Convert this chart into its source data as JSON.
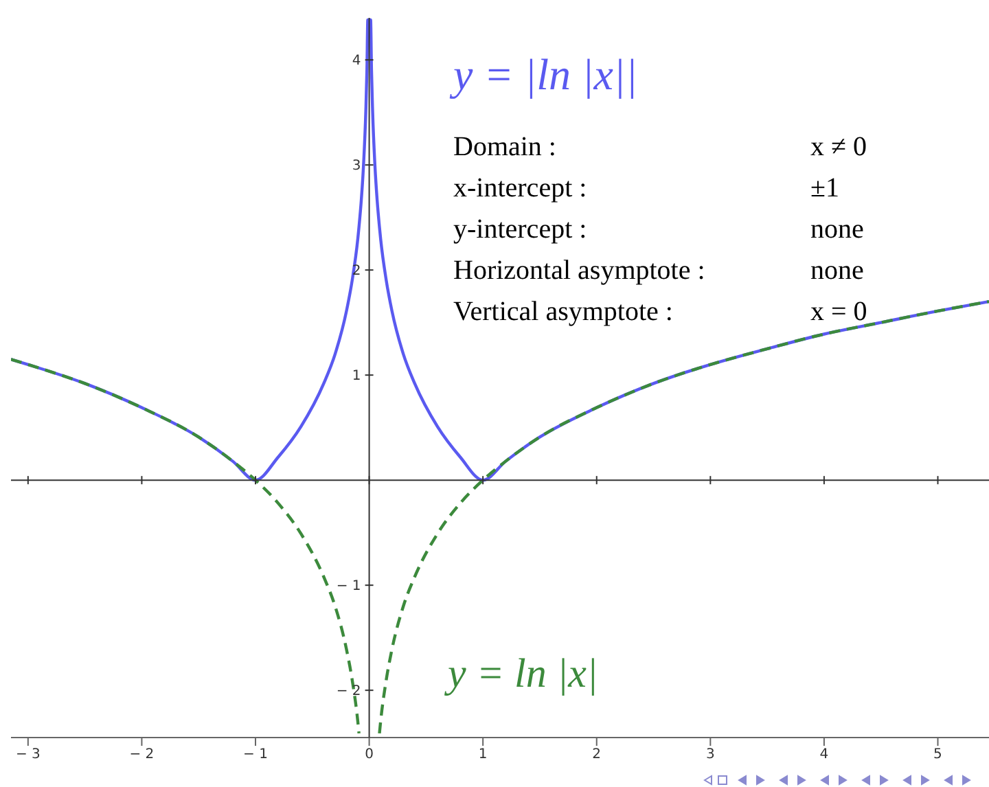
{
  "chart_data": {
    "type": "line",
    "x": [
      -3.15,
      -3,
      -2.5,
      -2,
      -1.5,
      -1.2,
      -1,
      -0.8,
      -0.6,
      -0.4,
      -0.3,
      -0.2,
      -0.15,
      -0.1,
      -0.09,
      -0.07,
      -0.05,
      -0.03,
      -0.02,
      -0.0125,
      0.0125,
      0.02,
      0.03,
      0.05,
      0.07,
      0.09,
      0.1,
      0.15,
      0.2,
      0.3,
      0.4,
      0.6,
      0.8,
      1,
      1.2,
      1.5,
      2,
      2.5,
      3,
      3.5,
      4,
      4.5,
      5,
      5.45
    ],
    "series": [
      {
        "name": "y = |ln |x||",
        "color": "#5a5af0",
        "line_style": "solid",
        "values": [
          1.15,
          1.1,
          0.92,
          0.69,
          0.41,
          0.18,
          0,
          0.22,
          0.51,
          0.92,
          1.2,
          1.61,
          1.9,
          2.3,
          2.41,
          2.66,
          3,
          3.51,
          3.91,
          4.38,
          4.38,
          3.91,
          3.51,
          3,
          2.66,
          2.41,
          2.3,
          1.9,
          1.61,
          1.2,
          0.92,
          0.51,
          0.22,
          0,
          0.18,
          0.41,
          0.69,
          0.92,
          1.1,
          1.25,
          1.39,
          1.5,
          1.61,
          1.7
        ]
      },
      {
        "name": "y = ln |x|",
        "color": "#3c8a3c",
        "line_style": "dashed",
        "values": [
          1.15,
          1.1,
          0.92,
          0.69,
          0.41,
          0.18,
          0,
          -0.22,
          -0.51,
          -0.92,
          -1.2,
          -1.61,
          -1.9,
          -2.3,
          -2.41,
          null,
          null,
          null,
          null,
          null,
          null,
          null,
          null,
          null,
          null,
          -2.41,
          -2.3,
          -1.9,
          -1.61,
          -1.2,
          -0.92,
          -0.51,
          -0.22,
          0,
          0.18,
          0.41,
          0.69,
          0.92,
          1.1,
          1.25,
          1.39,
          1.5,
          1.61,
          1.7
        ]
      }
    ],
    "xlim": [
      -3.15,
      5.45
    ],
    "xticks": [
      -3,
      -2,
      -1,
      0,
      1,
      2,
      3,
      4,
      5
    ],
    "ylim": [
      -2.45,
      4.4
    ],
    "yticks": [
      -2,
      -1,
      1,
      2,
      3,
      4
    ],
    "grid": false,
    "legend": false,
    "marker": "none",
    "annotations": [
      "Domain :",
      "x ≠ 0",
      "x-intercept :",
      "±1",
      "y-intercept :",
      "none",
      "Horizontal asymptote :",
      "none",
      "Vertical asymptote :",
      "x = 0"
    ]
  }
}
